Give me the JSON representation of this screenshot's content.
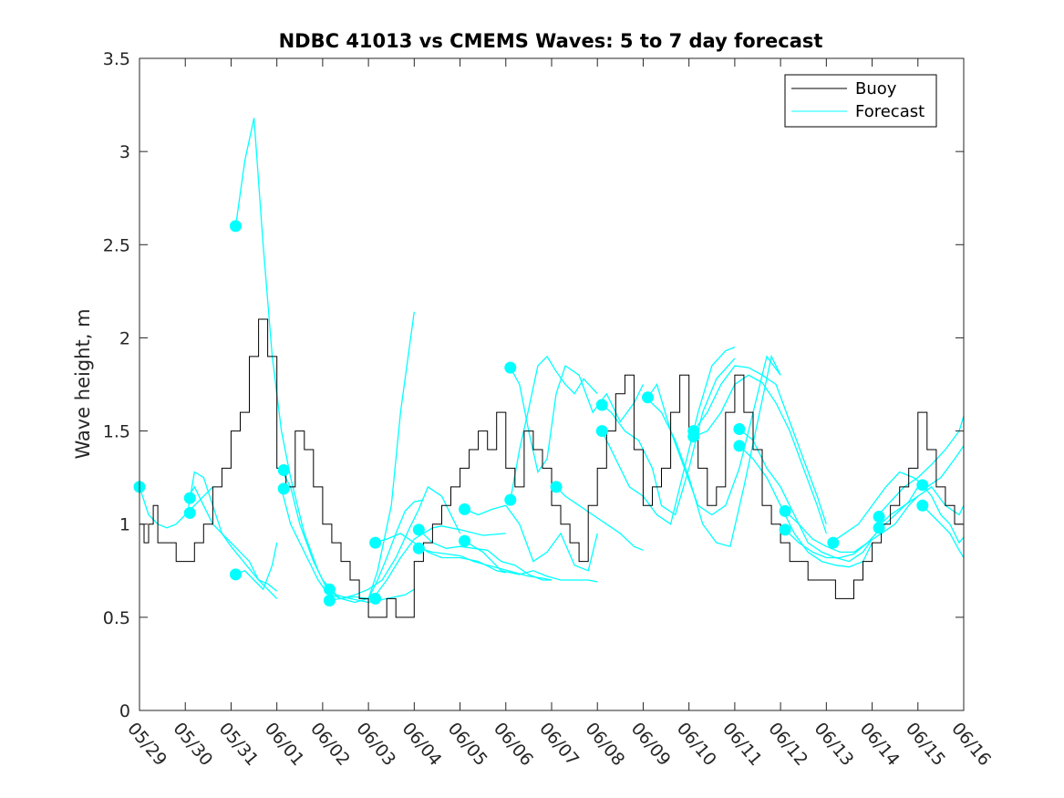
{
  "chart_data": {
    "type": "line",
    "title": "NDBC 41013 vs CMEMS Waves: 5 to 7 day forecast",
    "xlabel": "",
    "ylabel": "Wave height, m",
    "xlim": [
      0,
      18
    ],
    "ylim": [
      0,
      3.5
    ],
    "x_unit": "days since 05/29",
    "x_ticks": [
      0,
      1,
      2,
      3,
      4,
      5,
      6,
      7,
      8,
      9,
      10,
      11,
      12,
      13,
      14,
      15,
      16,
      17,
      18
    ],
    "x_tick_labels": [
      "05/29",
      "05/30",
      "05/31",
      "06/01",
      "06/02",
      "06/03",
      "06/04",
      "06/05",
      "06/06",
      "06/07",
      "06/08",
      "06/09",
      "06/10",
      "06/11",
      "06/12",
      "06/13",
      "06/14",
      "06/15",
      "06/16"
    ],
    "y_ticks": [
      0,
      0.5,
      1,
      1.5,
      2,
      2.5,
      3,
      3.5
    ],
    "y_tick_labels": [
      "0",
      "0.5",
      "1",
      "1.5",
      "2",
      "2.5",
      "3",
      "3.5"
    ],
    "grid": false,
    "legend": {
      "position": "top-right",
      "entries": [
        "Buoy",
        "Forecast"
      ]
    },
    "colors": {
      "buoy": "#000000",
      "forecast": "#00ffff"
    },
    "buoy": {
      "name": "Buoy",
      "x": [
        0,
        0.1,
        0.2,
        0.3,
        0.4,
        0.6,
        0.8,
        1.0,
        1.2,
        1.4,
        1.6,
        1.8,
        2.0,
        2.2,
        2.4,
        2.6,
        2.8,
        3.0,
        3.2,
        3.4,
        3.6,
        3.8,
        4.0,
        4.2,
        4.4,
        4.6,
        4.8,
        5.0,
        5.2,
        5.4,
        5.6,
        5.8,
        6.0,
        6.2,
        6.4,
        6.6,
        6.8,
        7.0,
        7.2,
        7.4,
        7.6,
        7.8,
        8.0,
        8.2,
        8.4,
        8.6,
        8.8,
        9.0,
        9.2,
        9.4,
        9.6,
        9.8,
        10.0,
        10.2,
        10.4,
        10.6,
        10.8,
        11.0,
        11.2,
        11.4,
        11.6,
        11.8,
        12.0,
        12.2,
        12.4,
        12.6,
        12.8,
        13.0,
        13.2,
        13.4,
        13.6,
        13.8,
        14.0,
        14.2,
        14.4,
        14.6,
        14.8,
        15.0,
        15.2,
        15.4,
        15.6,
        15.8,
        16.0,
        16.2,
        16.4,
        16.6,
        16.8,
        17.0,
        17.2,
        17.4,
        17.6,
        17.8,
        18.0
      ],
      "values": [
        1.0,
        0.9,
        1.0,
        1.1,
        0.9,
        0.9,
        0.8,
        0.8,
        0.9,
        1.0,
        1.2,
        1.3,
        1.5,
        1.6,
        1.9,
        2.1,
        1.9,
        1.3,
        1.2,
        1.5,
        1.4,
        1.2,
        1.0,
        0.9,
        0.8,
        0.7,
        0.6,
        0.5,
        0.5,
        0.6,
        0.5,
        0.5,
        0.8,
        0.9,
        1.0,
        1.1,
        1.2,
        1.3,
        1.4,
        1.5,
        1.4,
        1.6,
        1.3,
        1.2,
        1.5,
        1.4,
        1.3,
        1.1,
        1.0,
        0.9,
        0.8,
        1.1,
        1.3,
        1.5,
        1.7,
        1.8,
        1.4,
        1.1,
        1.2,
        1.3,
        1.6,
        1.8,
        1.5,
        1.3,
        1.1,
        1.2,
        1.6,
        1.8,
        1.6,
        1.4,
        1.1,
        1.0,
        0.9,
        0.8,
        0.8,
        0.7,
        0.7,
        0.7,
        0.6,
        0.6,
        0.7,
        0.8,
        0.9,
        1.0,
        1.1,
        1.2,
        1.3,
        1.6,
        1.4,
        1.2,
        1.1,
        1.0,
        1.0
      ]
    },
    "forecast_series": [
      {
        "x": [
          0.0,
          0.2,
          0.4,
          0.6,
          0.8,
          1.0,
          1.2,
          1.4,
          1.6
        ],
        "values": [
          1.2,
          1.05,
          1.0,
          0.98,
          1.0,
          1.05,
          1.1,
          1.15,
          1.2
        ]
      },
      {
        "x": [
          1.05,
          1.2,
          1.4,
          1.6,
          1.8,
          2.0,
          2.2,
          2.4,
          2.6,
          2.8,
          3.0
        ],
        "values": [
          1.14,
          1.2,
          1.1,
          1.0,
          0.95,
          0.9,
          0.85,
          0.8,
          0.7,
          0.65,
          0.6
        ]
      },
      {
        "x": [
          1.05,
          1.2,
          1.4,
          1.6,
          1.8,
          2.0,
          2.2,
          2.4,
          2.6,
          2.8,
          3.0
        ],
        "values": [
          1.06,
          1.28,
          1.25,
          1.1,
          0.95,
          0.88,
          0.82,
          0.76,
          0.7,
          0.68,
          0.64
        ]
      },
      {
        "x": [
          2.1,
          2.3,
          2.5,
          2.7,
          2.9,
          3.1,
          3.3,
          3.6,
          3.9,
          4.1
        ],
        "values": [
          2.6,
          2.95,
          3.18,
          2.5,
          1.9,
          1.5,
          1.25,
          0.95,
          0.75,
          0.65
        ]
      },
      {
        "x": [
          2.1,
          2.3,
          2.5,
          2.7,
          2.9,
          3.0
        ],
        "values": [
          0.73,
          0.75,
          0.7,
          0.65,
          0.78,
          0.9
        ]
      },
      {
        "x": [
          3.1,
          3.3,
          3.5,
          3.8,
          4.0,
          4.3,
          4.6,
          5.0,
          5.4,
          5.8,
          6.0
        ],
        "values": [
          1.29,
          1.2,
          1.0,
          0.8,
          0.7,
          0.62,
          0.6,
          0.58,
          0.6,
          0.62,
          0.65
        ]
      },
      {
        "x": [
          3.1,
          3.3,
          3.6,
          3.9,
          4.1,
          4.4,
          4.7,
          5.0,
          5.2,
          5.5,
          5.7,
          6.0
        ],
        "values": [
          1.19,
          1.0,
          0.85,
          0.7,
          0.63,
          0.6,
          0.58,
          0.6,
          0.75,
          1.1,
          1.6,
          2.14
        ]
      },
      {
        "x": [
          4.1,
          4.4,
          4.7,
          5.0,
          5.3,
          5.6,
          5.9,
          6.1,
          6.3,
          6.6,
          7.0
        ],
        "values": [
          0.65,
          0.6,
          0.62,
          0.65,
          0.7,
          0.82,
          0.98,
          1.08,
          1.2,
          1.15,
          0.95
        ]
      },
      {
        "x": [
          4.1,
          4.4,
          4.7,
          5.0,
          5.2,
          5.4,
          5.6,
          5.8,
          6.0,
          6.2
        ],
        "values": [
          0.59,
          0.6,
          0.61,
          0.6,
          0.7,
          0.82,
          0.95,
          1.07,
          1.12,
          1.13
        ]
      },
      {
        "x": [
          5.1,
          5.4,
          5.7,
          6.0,
          6.2,
          6.4,
          6.6,
          7.0,
          7.5,
          8.0
        ],
        "values": [
          0.6,
          0.7,
          0.82,
          0.92,
          0.95,
          0.98,
          0.99,
          0.97,
          0.94,
          0.95
        ]
      },
      {
        "x": [
          5.1,
          5.4,
          5.7,
          6.0,
          6.3,
          6.6,
          7.0,
          7.4,
          7.8,
          8.0
        ],
        "values": [
          0.9,
          0.92,
          0.95,
          0.9,
          0.85,
          0.82,
          0.82,
          0.8,
          0.75,
          0.74
        ]
      },
      {
        "x": [
          6.1,
          6.4,
          6.7,
          7.0,
          7.3,
          7.6,
          7.9,
          8.2,
          8.5,
          8.8,
          9.0
        ],
        "values": [
          0.97,
          0.9,
          0.87,
          0.88,
          0.87,
          0.86,
          0.8,
          0.78,
          0.73,
          0.7,
          0.7
        ]
      },
      {
        "x": [
          6.1,
          6.4,
          6.7,
          7.0,
          7.3,
          7.6,
          7.9,
          8.2,
          8.5,
          8.8,
          9.0
        ],
        "values": [
          0.87,
          0.85,
          0.84,
          0.83,
          0.8,
          0.78,
          0.76,
          0.74,
          0.72,
          0.71,
          0.7
        ]
      },
      {
        "x": [
          7.1,
          7.4,
          7.7,
          8.0,
          8.3,
          8.6,
          8.9,
          9.2,
          9.5,
          9.8,
          10.0
        ],
        "values": [
          1.08,
          1.05,
          1.08,
          1.1,
          1.0,
          0.8,
          0.85,
          0.95,
          0.78,
          0.75,
          0.95
        ]
      },
      {
        "x": [
          7.1,
          7.5,
          7.9,
          8.3,
          8.6,
          8.9,
          9.2,
          9.5,
          9.8,
          10.0
        ],
        "values": [
          0.91,
          0.85,
          0.75,
          0.73,
          0.75,
          0.72,
          0.7,
          0.7,
          0.7,
          0.69
        ]
      },
      {
        "x": [
          8.1,
          8.3,
          8.5,
          8.7,
          8.9,
          9.1,
          9.3,
          9.6,
          9.9,
          10.2,
          10.5,
          10.8,
          11.0
        ],
        "values": [
          1.84,
          1.75,
          1.5,
          1.28,
          1.35,
          1.7,
          1.85,
          1.8,
          1.6,
          1.7,
          1.55,
          1.65,
          1.75
        ]
      },
      {
        "x": [
          8.1,
          8.3,
          8.5,
          8.7,
          8.9,
          9.1,
          9.3,
          9.5,
          9.7,
          10.0
        ],
        "values": [
          1.13,
          1.4,
          1.62,
          1.85,
          1.9,
          1.82,
          1.75,
          1.7,
          1.78,
          1.7
        ]
      },
      {
        "x": [
          9.1,
          9.3,
          9.6,
          9.9,
          10.2,
          10.5,
          10.8,
          11.0
        ],
        "values": [
          1.2,
          1.15,
          1.1,
          1.05,
          1.0,
          0.95,
          0.88,
          0.86
        ]
      },
      {
        "x": [
          10.1,
          10.3,
          10.6,
          10.9,
          11.2,
          11.4,
          11.7,
          12.0,
          12.3,
          12.6,
          13.0
        ],
        "values": [
          1.64,
          1.6,
          1.5,
          1.45,
          1.3,
          1.1,
          1.05,
          1.3,
          1.6,
          1.78,
          1.89
        ]
      },
      {
        "x": [
          10.1,
          10.4,
          10.7,
          11.0,
          11.3,
          11.6,
          11.9,
          12.2,
          12.5,
          12.8,
          13.0
        ],
        "values": [
          1.5,
          1.35,
          1.2,
          1.15,
          1.05,
          1.0,
          1.3,
          1.6,
          1.85,
          1.93,
          1.95
        ]
      },
      {
        "x": [
          11.1,
          11.3,
          11.6,
          11.9,
          12.2,
          12.5,
          12.8,
          13.1,
          13.4,
          13.7,
          14.0
        ],
        "values": [
          1.68,
          1.75,
          1.5,
          1.3,
          1.1,
          1.05,
          1.1,
          1.3,
          1.6,
          1.9,
          1.8
        ]
      },
      {
        "x": [
          11.1,
          11.4,
          11.7,
          12.0,
          12.3,
          12.6,
          12.9,
          13.2,
          13.5,
          13.8,
          14.0
        ],
        "values": [
          1.67,
          1.6,
          1.45,
          1.25,
          1.0,
          0.9,
          0.88,
          1.2,
          1.55,
          1.9,
          1.8
        ]
      },
      {
        "x": [
          12.1,
          12.4,
          12.7,
          13.0,
          13.3,
          13.6,
          13.9,
          14.2,
          14.5,
          14.8,
          15.0
        ],
        "values": [
          1.5,
          1.6,
          1.75,
          1.85,
          1.84,
          1.8,
          1.75,
          1.55,
          1.35,
          1.15,
          1.0
        ]
      },
      {
        "x": [
          12.1,
          12.4,
          12.7,
          13.0,
          13.3,
          13.6,
          13.9,
          14.2,
          14.5,
          14.8,
          15.0
        ],
        "values": [
          1.47,
          1.5,
          1.6,
          1.75,
          1.8,
          1.76,
          1.65,
          1.5,
          1.3,
          1.1,
          0.95
        ]
      },
      {
        "x": [
          13.1,
          13.4,
          13.7,
          14.0,
          14.3,
          14.6,
          14.9,
          15.2,
          15.5,
          15.8,
          16.0
        ],
        "values": [
          1.51,
          1.45,
          1.3,
          1.2,
          1.05,
          0.9,
          0.85,
          0.82,
          0.8,
          0.85,
          0.92
        ]
      },
      {
        "x": [
          13.1,
          13.4,
          13.7,
          14.0,
          14.3,
          14.6,
          14.9,
          15.2,
          15.5,
          15.8,
          16.0
        ],
        "values": [
          1.42,
          1.35,
          1.25,
          1.1,
          0.95,
          0.85,
          0.8,
          0.78,
          0.77,
          0.8,
          0.9
        ]
      },
      {
        "x": [
          14.1,
          14.4,
          14.7,
          15.0,
          15.3,
          15.6,
          15.9,
          16.2,
          16.5,
          16.8,
          17.0
        ],
        "values": [
          1.07,
          1.0,
          0.92,
          0.88,
          0.85,
          0.85,
          0.9,
          0.95,
          1.0,
          1.1,
          1.15
        ]
      },
      {
        "x": [
          14.1,
          14.4,
          14.7,
          15.0,
          15.3,
          15.6,
          15.9,
          16.2,
          16.5,
          16.8,
          17.0
        ],
        "values": [
          0.97,
          0.9,
          0.85,
          0.82,
          0.82,
          0.84,
          0.9,
          0.98,
          1.05,
          1.12,
          1.2
        ]
      },
      {
        "x": [
          15.1,
          15.4,
          15.7,
          16.0,
          16.3,
          16.6,
          16.9,
          17.2,
          17.5,
          17.8,
          18.0
        ],
        "values": [
          0.9,
          0.95,
          1.0,
          1.1,
          1.2,
          1.28,
          1.25,
          1.2,
          1.25,
          1.35,
          1.42
        ]
      },
      {
        "x": [
          16.1,
          16.4,
          16.7,
          17.0,
          17.3,
          17.6,
          17.9,
          18.0
        ],
        "values": [
          1.04,
          1.12,
          1.2,
          1.25,
          1.32,
          1.4,
          1.5,
          1.58
        ]
      },
      {
        "x": [
          16.1,
          16.4,
          16.7,
          17.0,
          17.3,
          17.6,
          17.9,
          18.0
        ],
        "values": [
          0.98,
          1.05,
          1.1,
          1.15,
          1.2,
          1.1,
          1.05,
          1.1
        ]
      },
      {
        "x": [
          17.1,
          17.3,
          17.5,
          17.7,
          17.9,
          18.0
        ],
        "values": [
          1.21,
          1.15,
          1.05,
          1.0,
          0.9,
          0.93
        ]
      },
      {
        "x": [
          17.1,
          17.3,
          17.5,
          17.7,
          17.9,
          18.0
        ],
        "values": [
          1.1,
          1.05,
          1.0,
          0.95,
          0.86,
          0.82
        ]
      }
    ],
    "forecast_markers": {
      "x": [
        0.0,
        1.1,
        1.1,
        2.1,
        2.1,
        3.15,
        3.15,
        4.15,
        4.15,
        5.15,
        5.15,
        6.1,
        6.1,
        7.1,
        7.1,
        8.1,
        8.1,
        9.1,
        10.1,
        10.1,
        11.1,
        12.1,
        12.1,
        13.1,
        13.1,
        14.1,
        14.1,
        15.15,
        16.15,
        16.15,
        17.1,
        17.1
      ],
      "values": [
        1.2,
        1.14,
        1.06,
        2.6,
        0.73,
        1.29,
        1.19,
        0.65,
        0.59,
        0.6,
        0.9,
        0.97,
        0.87,
        1.08,
        0.91,
        1.84,
        1.13,
        1.2,
        1.64,
        1.5,
        1.68,
        1.5,
        1.47,
        1.51,
        1.42,
        1.07,
        0.97,
        0.9,
        1.04,
        0.98,
        1.21,
        1.1
      ]
    }
  }
}
